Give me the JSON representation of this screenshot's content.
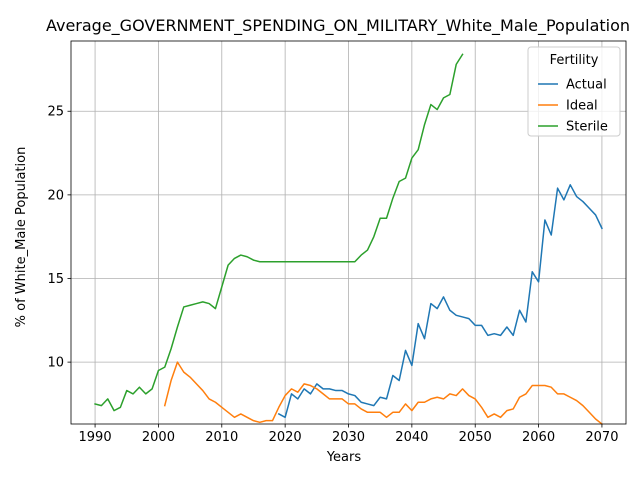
{
  "chart_data": {
    "type": "line",
    "title": "Average_GOVERNMENT_SPENDING_ON_MILITARY_White_Male_Population",
    "xlabel": "Years",
    "ylabel": "% of White_Male Population",
    "xlim": [
      1986.2,
      2073.8
    ],
    "ylim": [
      6.3,
      29.2
    ],
    "xticks": [
      1990,
      2000,
      2010,
      2020,
      2030,
      2040,
      2050,
      2060,
      2070
    ],
    "yticks": [
      10,
      15,
      20,
      25
    ],
    "grid": true,
    "legend": {
      "title": "Fertility",
      "position": "top-right"
    },
    "series": [
      {
        "name": "Actual",
        "color": "#1f77b4",
        "x": [
          2019,
          2020,
          2021,
          2022,
          2023,
          2024,
          2025,
          2026,
          2027,
          2028,
          2029,
          2030,
          2031,
          2032,
          2033,
          2034,
          2035,
          2036,
          2037,
          2038,
          2039,
          2040,
          2041,
          2042,
          2043,
          2044,
          2045,
          2046,
          2047,
          2048,
          2049,
          2050,
          2051,
          2052,
          2053,
          2054,
          2055,
          2056,
          2057,
          2058,
          2059,
          2060,
          2061,
          2062,
          2063,
          2064,
          2065,
          2066,
          2067,
          2068,
          2069,
          2070
        ],
        "y": [
          6.9,
          6.7,
          8.1,
          7.8,
          8.4,
          8.1,
          8.7,
          8.4,
          8.4,
          8.3,
          8.3,
          8.1,
          8.0,
          7.6,
          7.5,
          7.4,
          7.9,
          7.8,
          9.2,
          8.9,
          10.7,
          9.8,
          12.3,
          11.4,
          13.5,
          13.2,
          13.9,
          13.1,
          12.8,
          12.7,
          12.6,
          12.2,
          12.2,
          11.6,
          11.7,
          11.6,
          12.1,
          11.6,
          13.1,
          12.4,
          15.4,
          14.8,
          18.5,
          17.6,
          20.4,
          19.7,
          20.6,
          19.9,
          19.6,
          19.2,
          18.8,
          18.0
        ]
      },
      {
        "name": "Ideal",
        "color": "#ff7f0e",
        "x": [
          2001,
          2002,
          2003,
          2004,
          2005,
          2006,
          2007,
          2008,
          2009,
          2010,
          2011,
          2012,
          2013,
          2014,
          2015,
          2016,
          2017,
          2018,
          2019,
          2020,
          2021,
          2022,
          2023,
          2024,
          2025,
          2026,
          2027,
          2028,
          2029,
          2030,
          2031,
          2032,
          2033,
          2034,
          2035,
          2036,
          2037,
          2038,
          2039,
          2040,
          2041,
          2042,
          2043,
          2044,
          2045,
          2046,
          2047,
          2048,
          2049,
          2050,
          2051,
          2052,
          2053,
          2054,
          2055,
          2056,
          2057,
          2058,
          2059,
          2060,
          2061,
          2062,
          2063,
          2064,
          2065,
          2066,
          2067,
          2068,
          2069,
          2070
        ],
        "y": [
          7.4,
          8.9,
          10.0,
          9.4,
          9.1,
          8.7,
          8.3,
          7.8,
          7.6,
          7.3,
          7.0,
          6.7,
          6.9,
          6.7,
          6.5,
          6.4,
          6.5,
          6.5,
          7.3,
          8.0,
          8.4,
          8.2,
          8.7,
          8.6,
          8.4,
          8.1,
          7.8,
          7.8,
          7.8,
          7.5,
          7.5,
          7.2,
          7.0,
          7.0,
          7.0,
          6.7,
          7.0,
          7.0,
          7.5,
          7.1,
          7.6,
          7.6,
          7.8,
          7.9,
          7.8,
          8.1,
          8.0,
          8.4,
          8.0,
          7.8,
          7.3,
          6.7,
          6.9,
          6.7,
          7.1,
          7.2,
          7.9,
          8.1,
          8.6,
          8.6,
          8.6,
          8.5,
          8.1,
          8.1,
          7.9,
          7.7,
          7.4,
          7.0,
          6.6,
          6.3
        ]
      },
      {
        "name": "Sterile",
        "color": "#2ca02c",
        "x": [
          1990,
          1991,
          1992,
          1993,
          1994,
          1995,
          1996,
          1997,
          1998,
          1999,
          2000,
          2001,
          2002,
          2003,
          2004,
          2005,
          2006,
          2007,
          2008,
          2009,
          2010,
          2011,
          2012,
          2013,
          2014,
          2015,
          2016,
          2017,
          2018,
          2019,
          2020,
          2021,
          2022,
          2023,
          2024,
          2025,
          2026,
          2027,
          2028,
          2029,
          2030,
          2031,
          2032,
          2033,
          2034,
          2035,
          2036,
          2037,
          2038,
          2039,
          2040,
          2041,
          2042,
          2043,
          2044,
          2045,
          2046,
          2047,
          2048
        ],
        "y": [
          7.5,
          7.4,
          7.8,
          7.1,
          7.3,
          8.3,
          8.1,
          8.5,
          8.1,
          8.4,
          9.5,
          9.7,
          10.8,
          12.1,
          13.3,
          13.4,
          13.5,
          13.6,
          13.5,
          13.2,
          14.5,
          15.8,
          16.2,
          16.4,
          16.3,
          16.1,
          16.0,
          16.0,
          16.0,
          16.0,
          16.0,
          16.0,
          16.0,
          16.0,
          16.0,
          16.0,
          16.0,
          16.0,
          16.0,
          16.0,
          16.0,
          16.0,
          16.4,
          16.7,
          17.5,
          18.6,
          18.6,
          19.8,
          20.8,
          21.0,
          22.2,
          22.7,
          24.2,
          25.4,
          25.1,
          25.8,
          26.0,
          27.8,
          28.4
        ]
      }
    ]
  }
}
